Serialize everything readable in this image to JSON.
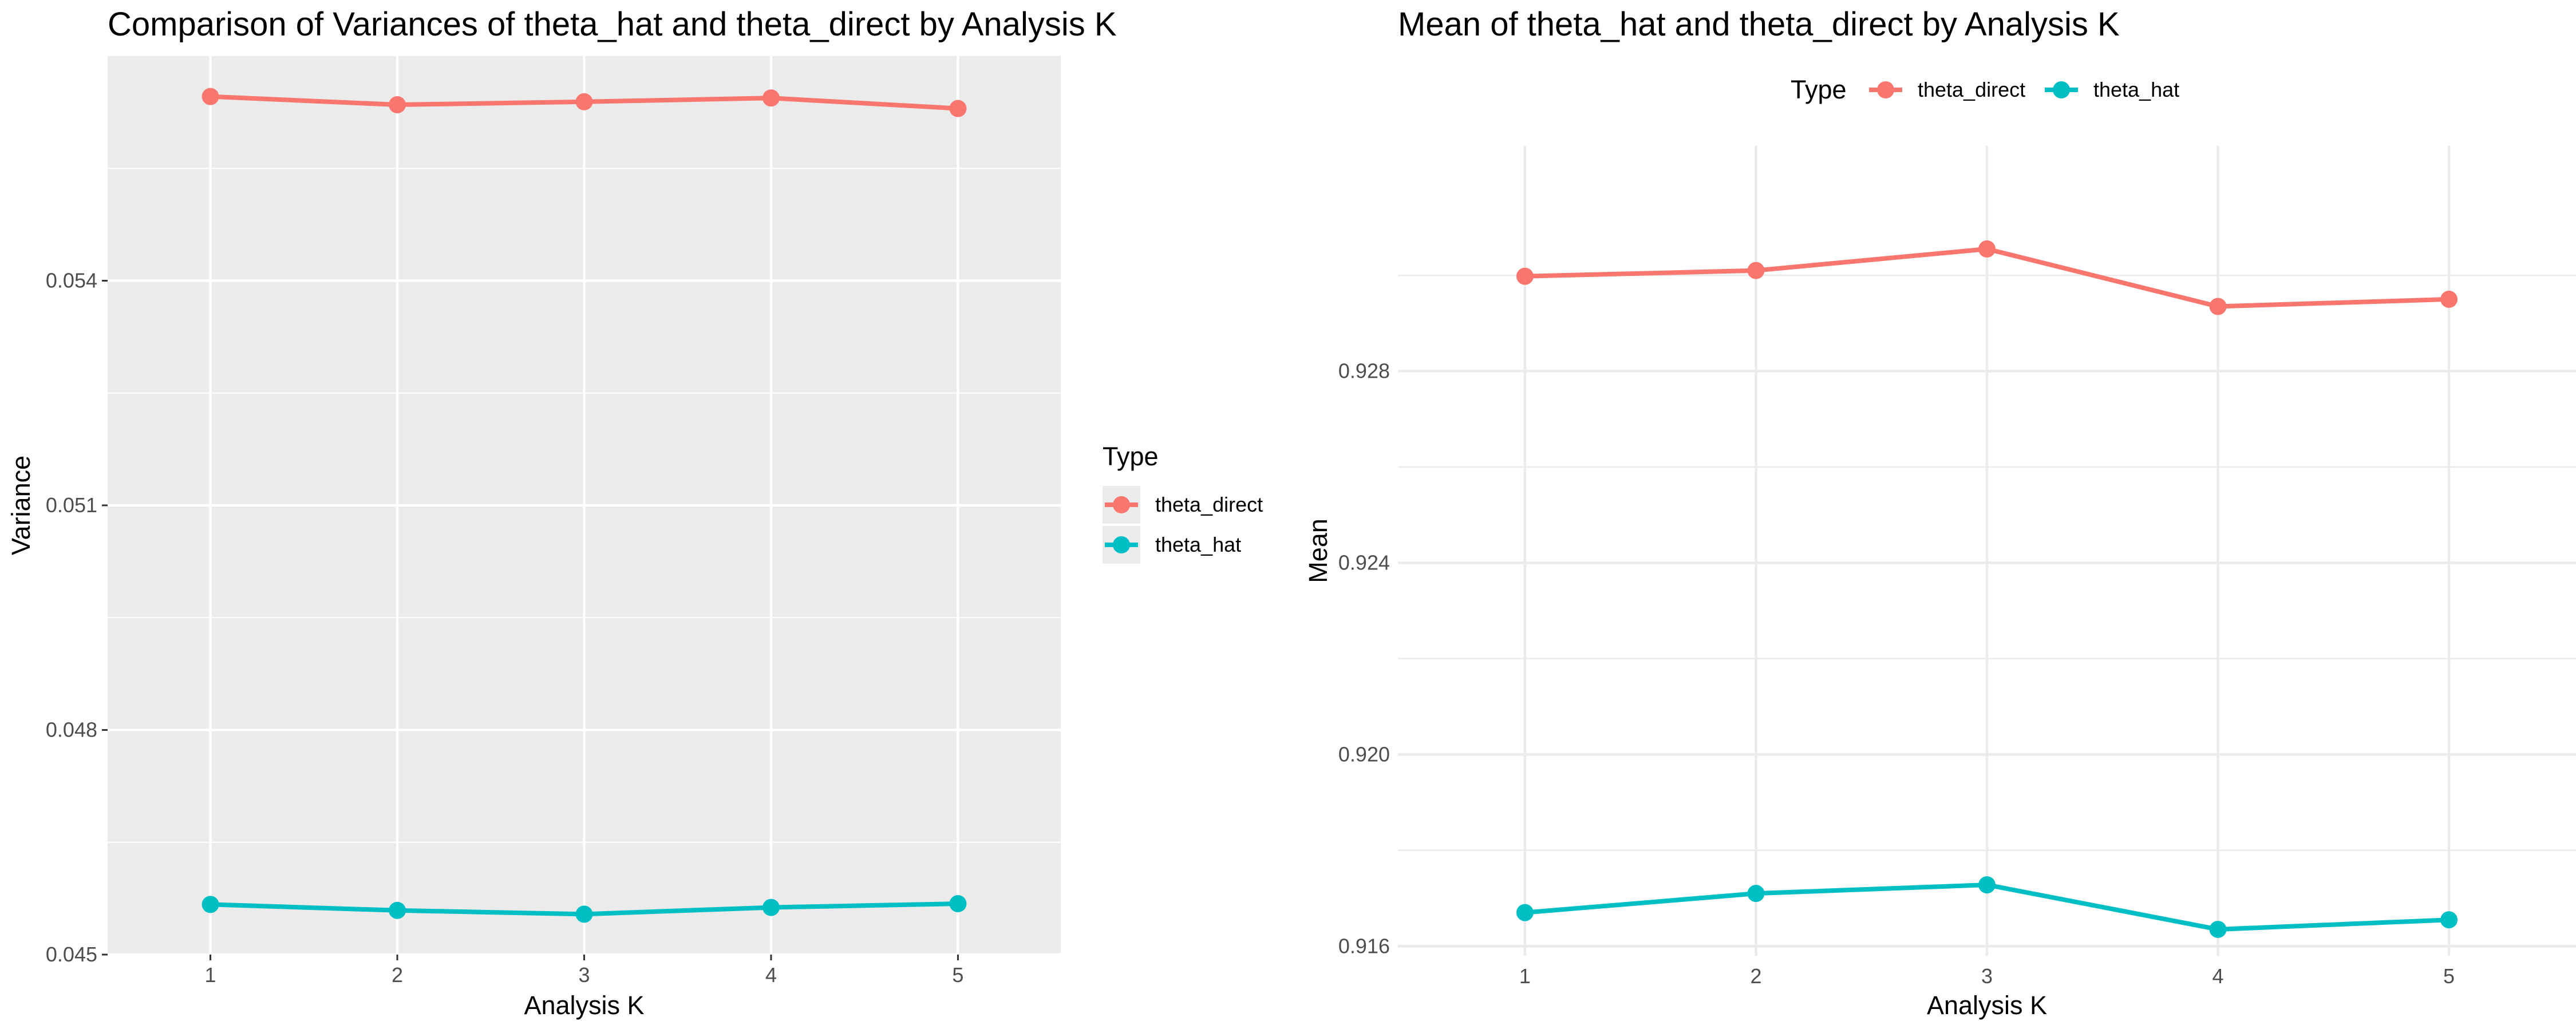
{
  "chart_data": [
    {
      "type": "line",
      "title": "Comparison of Variances of theta_hat and theta_direct by Analysis K",
      "xlabel": "Analysis K",
      "ylabel": "Variance",
      "x": [
        1,
        2,
        3,
        4,
        5
      ],
      "xticks": [
        "1",
        "2",
        "3",
        "4",
        "5"
      ],
      "xlim": [
        0.45,
        5.55
      ],
      "ylim": [
        0.045,
        0.057
      ],
      "yticks": [
        "0.045",
        "0.048",
        "0.051",
        "0.054"
      ],
      "grid": true,
      "background": "grey",
      "legend": {
        "title": "Type",
        "placement": "right"
      },
      "series": [
        {
          "name": "theta_direct",
          "color": "#F8766D",
          "values": [
            0.05646,
            0.05635,
            0.05639,
            0.05644,
            0.0563
          ]
        },
        {
          "name": "theta_hat",
          "color": "#00BFC4",
          "values": [
            0.04567,
            0.04559,
            0.04554,
            0.04563,
            0.04568
          ]
        }
      ]
    },
    {
      "type": "line",
      "title": "Mean of theta_hat and theta_direct by Analysis K",
      "xlabel": "Analysis K",
      "ylabel": "Mean",
      "x": [
        1,
        2,
        3,
        4,
        5
      ],
      "xticks": [
        "1",
        "2",
        "3",
        "4",
        "5"
      ],
      "xlim": [
        0.45,
        5.55
      ],
      "ylim": [
        0.9158,
        0.9327
      ],
      "yticks": [
        "0.916",
        "0.920",
        "0.924",
        "0.928"
      ],
      "grid": true,
      "background": "white",
      "legend": {
        "title": "Type",
        "placement": "top"
      },
      "series": [
        {
          "name": "theta_direct",
          "color": "#F8766D",
          "values": [
            0.92998,
            0.9301,
            0.93055,
            0.92935,
            0.9295
          ]
        },
        {
          "name": "theta_hat",
          "color": "#00BFC4",
          "values": [
            0.9167,
            0.9171,
            0.91728,
            0.91635,
            0.91655
          ]
        }
      ]
    }
  ]
}
